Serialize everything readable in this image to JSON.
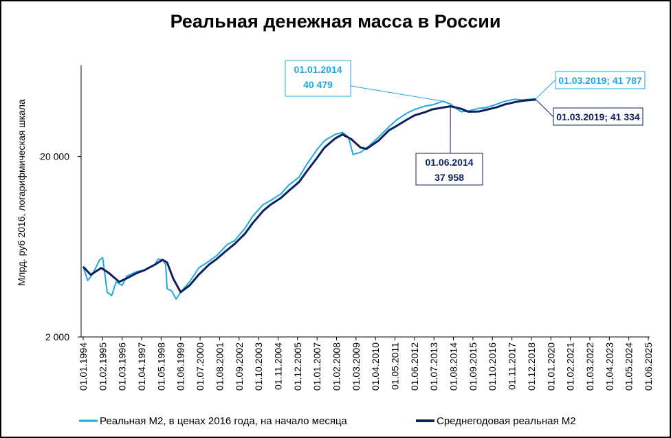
{
  "chart_data": {
    "type": "line",
    "title": "Реальная денежная масса в России",
    "y_label": "Млрд. руб 2016, логарифмическая шкала",
    "log_scale": true,
    "grid": false,
    "legend": "bottom",
    "ylim": [
      2000,
      64000
    ],
    "yticks": [
      {
        "value": 2000,
        "label": "2 000"
      },
      {
        "value": 20000,
        "label": "20 000"
      }
    ],
    "xlim": [
      "01.01.1994",
      "01.06.2025"
    ],
    "xticks": [
      "01.01.1994",
      "01.02.1995",
      "01.03.1996",
      "01.04.1997",
      "01.05.1998",
      "01.06.1999",
      "01.07.2000",
      "01.08.2001",
      "01.09.2002",
      "01.10.2003",
      "01.11.2004",
      "01.12.2005",
      "01.01.2007",
      "01.02.2008",
      "01.03.2009",
      "01.04.2010",
      "01.05.2011",
      "01.06.2012",
      "01.07.2013",
      "01.08.2014",
      "01.09.2015",
      "01.10.2016",
      "01.11.2017",
      "01.12.2018",
      "01.01.2020",
      "01.02.2021",
      "01.03.2022",
      "01.04.2023",
      "01.05.2024",
      "01.06.2025"
    ],
    "series": [
      {
        "name": "Реальная М2, в ценах 2016 года, на начало месяца",
        "color": "#1ea8e0",
        "width": 2,
        "x": [
          "01.01.1994",
          "01.04.1994",
          "01.07.1994",
          "01.12.1994",
          "01.02.1995",
          "01.05.1995",
          "01.08.1995",
          "01.11.1995",
          "01.03.1996",
          "01.06.1996",
          "01.01.1997",
          "01.06.1997",
          "01.01.1998",
          "01.03.1998",
          "01.06.1998",
          "01.08.1998",
          "01.09.1998",
          "01.12.1998",
          "01.03.1999",
          "01.06.1999",
          "01.12.1999",
          "01.06.2000",
          "01.01.2001",
          "01.06.2001",
          "01.01.2002",
          "01.06.2002",
          "01.01.2003",
          "01.06.2003",
          "01.01.2004",
          "01.06.2004",
          "01.01.2005",
          "01.06.2005",
          "01.01.2006",
          "01.06.2006",
          "01.01.2007",
          "01.06.2007",
          "01.01.2008",
          "01.06.2008",
          "01.10.2008",
          "01.01.2009",
          "01.06.2009",
          "01.12.2009",
          "01.06.2010",
          "01.01.2011",
          "01.06.2011",
          "01.01.2012",
          "01.06.2012",
          "01.01.2013",
          "01.06.2013",
          "01.01.2014",
          "01.06.2014",
          "01.01.2015",
          "01.06.2015",
          "01.01.2016",
          "01.06.2016",
          "01.01.2017",
          "01.06.2017",
          "01.01.2018",
          "01.06.2018",
          "01.03.2019"
        ],
        "values": [
          4900,
          4110,
          4420,
          5350,
          5500,
          3540,
          3390,
          4040,
          3860,
          4340,
          4610,
          4690,
          5040,
          5400,
          5350,
          5040,
          3700,
          3600,
          3240,
          3540,
          4040,
          4820,
          5260,
          5640,
          6490,
          6840,
          8020,
          9310,
          10820,
          11400,
          12440,
          13840,
          15360,
          18000,
          21840,
          24480,
          26500,
          27200,
          25580,
          20530,
          21080,
          23020,
          25580,
          29180,
          31860,
          34780,
          36400,
          38020,
          38640,
          40479,
          39000,
          35400,
          35720,
          37000,
          37320,
          39000,
          40400,
          41500,
          41200,
          41787
        ]
      },
      {
        "name": "Среднегодовая реальная М2",
        "color": "#0d1f5c",
        "width": 3,
        "x": [
          "01.01.1994",
          "01.06.1994",
          "01.01.1995",
          "01.06.1995",
          "01.01.1996",
          "01.06.1996",
          "01.01.1997",
          "01.06.1997",
          "01.01.1998",
          "01.06.1998",
          "01.09.1998",
          "01.01.1999",
          "01.06.1999",
          "01.12.1999",
          "01.06.2000",
          "01.01.2001",
          "01.06.2001",
          "01.01.2002",
          "01.06.2002",
          "01.01.2003",
          "01.06.2003",
          "01.01.2004",
          "01.06.2004",
          "01.01.2005",
          "01.06.2005",
          "01.01.2006",
          "01.06.2006",
          "01.01.2007",
          "01.06.2007",
          "01.01.2008",
          "01.06.2008",
          "01.12.2008",
          "01.06.2009",
          "01.10.2009",
          "01.06.2010",
          "01.01.2011",
          "01.06.2011",
          "01.01.2012",
          "01.06.2012",
          "01.01.2013",
          "01.06.2013",
          "01.06.2014",
          "01.01.2015",
          "01.06.2015",
          "01.01.2016",
          "01.06.2016",
          "01.01.2017",
          "01.06.2017",
          "01.01.2018",
          "01.06.2018",
          "01.03.2019"
        ],
        "values": [
          4900,
          4420,
          4820,
          4530,
          4040,
          4220,
          4530,
          4690,
          5040,
          5350,
          5170,
          4220,
          3540,
          3860,
          4420,
          5040,
          5400,
          6060,
          6550,
          7480,
          8530,
          9980,
          10820,
          11800,
          12880,
          14440,
          16480,
          19640,
          22420,
          25140,
          26500,
          24900,
          22420,
          22020,
          24480,
          27940,
          29500,
          32000,
          33800,
          35200,
          36500,
          37958,
          36800,
          35400,
          35500,
          36300,
          37500,
          38800,
          40000,
          40700,
          41334
        ]
      }
    ],
    "annotations": [
      {
        "series": 0,
        "x": "01.01.2014",
        "value": 40479,
        "lines": [
          "01.01.2014",
          "40 479"
        ]
      },
      {
        "series": 0,
        "x": "01.03.2019",
        "value": 41787,
        "lines": [
          "01.03.2019;  41 787"
        ]
      },
      {
        "series": 1,
        "x": "01.06.2014",
        "value": 37958,
        "lines": [
          "01.06.2014",
          "37 958"
        ]
      },
      {
        "series": 1,
        "x": "01.03.2019",
        "value": 41334,
        "lines": [
          "01.03.2019;  41 334"
        ]
      }
    ]
  }
}
